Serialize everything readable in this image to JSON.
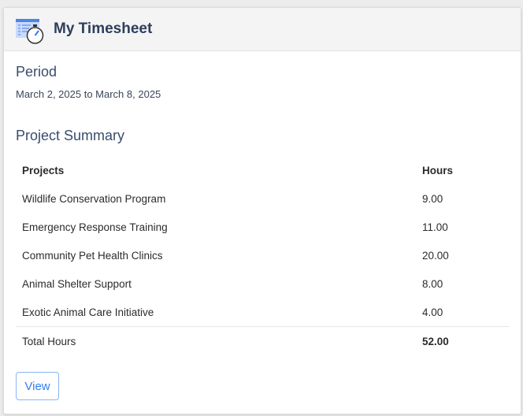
{
  "header": {
    "title": "My Timesheet",
    "icon": "timesheet-stopwatch-icon"
  },
  "period": {
    "heading": "Period",
    "text": "March 2, 2025 to March 8, 2025"
  },
  "summary": {
    "heading": "Project Summary",
    "columns": [
      "Projects",
      "Hours"
    ],
    "rows": [
      {
        "project": "Wildlife Conservation Program",
        "hours": "9.00"
      },
      {
        "project": "Emergency Response Training",
        "hours": "11.00"
      },
      {
        "project": "Community Pet Health Clinics",
        "hours": "20.00"
      },
      {
        "project": "Animal Shelter Support",
        "hours": "8.00"
      },
      {
        "project": "Exotic Animal Care Initiative",
        "hours": "4.00"
      }
    ],
    "total_label": "Total Hours",
    "total_value": "52.00"
  },
  "actions": {
    "view_label": "View"
  },
  "colors": {
    "accent": "#2f7ef5",
    "heading": "#2e3f5c"
  }
}
